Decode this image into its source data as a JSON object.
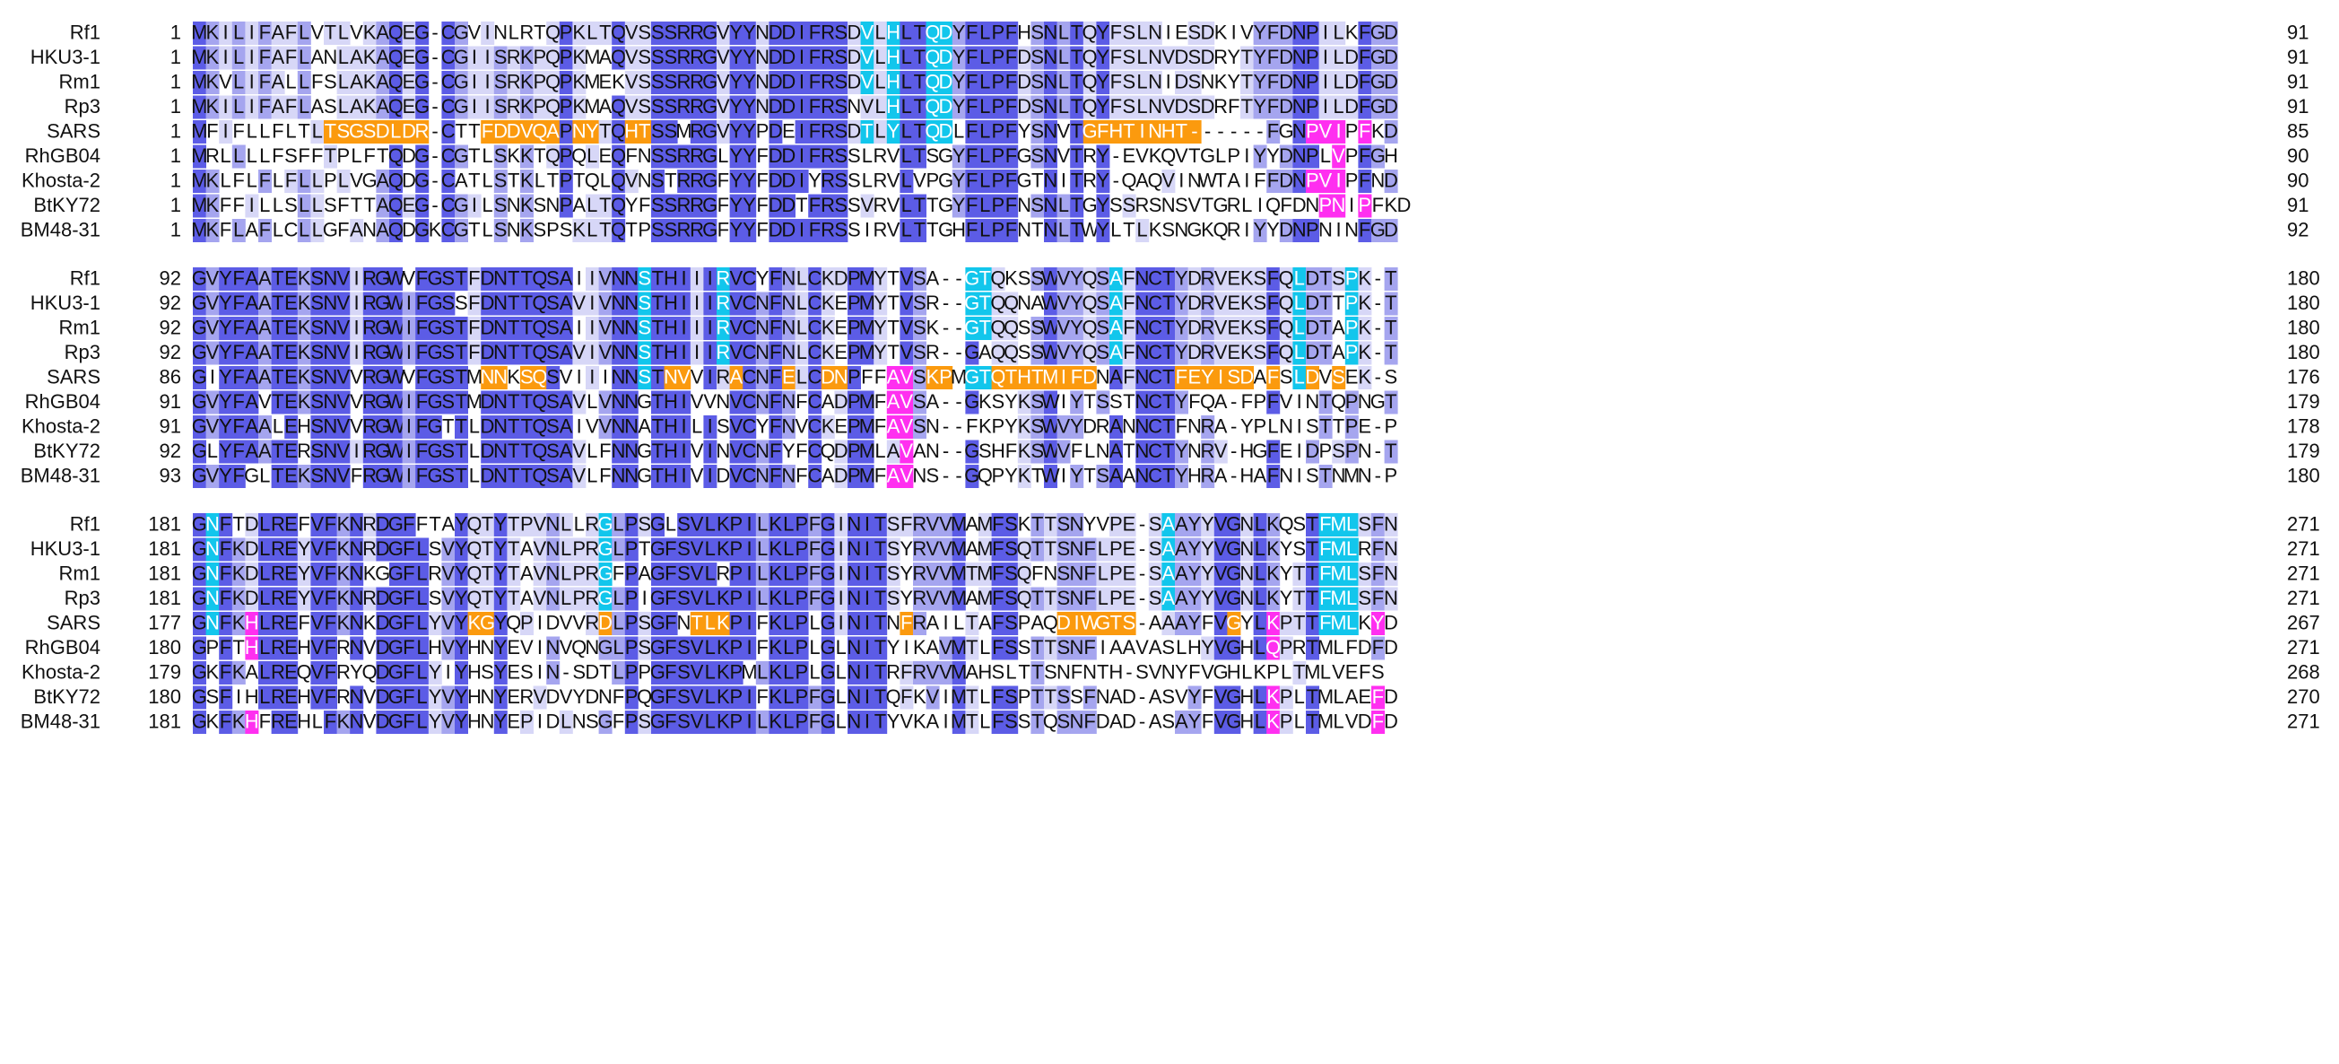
{
  "colors": {
    "conservation": [
      "#ffffff",
      "#d7d7f7",
      "#a5a5ef",
      "#5c5ce6"
    ],
    "cyan": "#12c6ec",
    "orange": "#fb9a0e",
    "magenta": "#ff2ff0",
    "text_dark": "#111111",
    "text_light": "#ffffff"
  },
  "blocks": [
    {
      "rows": [
        {
          "name": "Rf1",
          "start": "1",
          "seq": "MKILIFAFLVTLVKAQEG-CGVINLRTQPKLTQVSSSRRGVYYNDDIFRSDVLHLTQDYFLPFHSNLTQYFSLNIESDKIVYFDNPILKFGD",
          "end": "91"
        },
        {
          "name": "HKU3-1",
          "start": "1",
          "seq": "MKILIFAFLANLAKAQEG-CGIISRKPQPKMAQVSSSRRGVYYNDDIFRSDVLHLTQDYFLPFDSNLTQYFSLNVDSDRYTYFDNPILDFGD",
          "end": "91"
        },
        {
          "name": "Rm1",
          "start": "1",
          "seq": "MKVLIFALLFSLAKAQEG-CGIISRKPQPKMEKVSSSRRGVYYNDDIFRSDVLHLTQDYFLPFDSNLTQYFSLNIDSNKYTYFDNPILDFGD",
          "end": "91"
        },
        {
          "name": "Rp3",
          "start": "1",
          "seq": "MKILIFAFLASLAKAQEG-CGIISRKPQPKMAQVSSSRRGVYYNDDIFRSNVLHLTQDYFLPFDSNLTQYFSLNVDSDRFTYFDNPILDFGD",
          "end": "91"
        },
        {
          "name": "SARS",
          "start": "1",
          "seq": "MFIFLLFLTLTSGSDLDR-CTTFDDVQAPNYTQHTSSMRGVYYPDEIFRSDTLYLTQDLFLPFYSNVTGFHTINHT------FGNPVIPFKD",
          "end": "85"
        },
        {
          "name": "RhGB04",
          "start": "1",
          "seq": "MRLLLLFSFFTPLFTQDG-CGTLSKKTQPQLEQFNSSRRGLYYFDDIFRSSLRVLTSGYFLPFGSNVTRY-EVKQVTGLPIYYDNPLVPFGH",
          "end": "90"
        },
        {
          "name": "Khosta-2",
          "start": "1",
          "seq": "MKLFLFLFLLPLVGAQDG-CATLSTKLTPTQLQVNSTRRGFYYFDDIYRSSLRVLVPGYFLPFGTNITRY-QAQVINWTAIFFDNPVIPFND",
          "end": "90"
        },
        {
          "name": "BtKY72",
          "start": "1",
          "seq": "MKFFILLSLLSFTTAQEG-CGILSNKSNPALTQYFSSRRGFYYFDDTFRSSVRVLTTGYFLPFNSNLTGYSSRSNSVTGRLIQFDNPNIPFKD",
          "end": "91"
        },
        {
          "name": "BM48-31",
          "start": "1",
          "seq": "MKFLAFLCLLGFANAQDGKCGTLSNKSPSKLTQTPSSRRGFYYFDDIFRSSIRVLTTGHFLPFNTNLTWYLTLKSNGKQRIYYDNPNINFGD",
          "end": "92"
        }
      ]
    },
    {
      "rows": [
        {
          "name": "Rf1",
          "start": "92",
          "seq": "GVYFAATEKSNVIRGWVFGSTFDNTTQSAIIVNNSTHIIIRVCYFNLCKDPMYTVSA--GTQKSSWVYQSAFNCTYDRVEKSFQLDTSPK-T",
          "end": "180"
        },
        {
          "name": "HKU3-1",
          "start": "92",
          "seq": "GVYFAATEKSNVIRGWIFGSSFDNTTQSAVIVNNSTHIIIRVCNFNLCKEPMYTVSR--GTQQNAWVYQSAFNCTYDRVEKSFQLDTTPK-T",
          "end": "180"
        },
        {
          "name": "Rm1",
          "start": "92",
          "seq": "GVYFAATEKSNVIRGWIFGSTFDNTTQSAIIVNNSTHIIIRVCNFNLCKEPMYTVSK--GTQQSSWVYQSAFNCTYDRVEKSFQLDTAPK-T",
          "end": "180"
        },
        {
          "name": "Rp3",
          "start": "92",
          "seq": "GVYFAATEKSNVIRGWIFGSTFDNTTQSAVIVNNSTHIIIRVCNFNLCKEPMYTVSR--GAQQSSWVYQSAFNCTYDRVEKSFQLDTAPK-T",
          "end": "180"
        },
        {
          "name": "SARS",
          "start": "86",
          "seq": "GIYFAATEKSNVVRGWVFGSTMNNKSQSVIIINNSTNVVIRACNFELCDNPFFAVSKPMGTQTHTMIFDNAFNCTFEYISDAFSLDVSEK-S",
          "end": "176"
        },
        {
          "name": "RhGB04",
          "start": "91",
          "seq": "GVYFAVTEKSNVVRGWIFGSTMDNTTQSAVLVNNGTHIVVNVCNFNFCADPMFAVSA--GKSYKSWIYTSSTNCTYFQA-FPFVINTQPNGT",
          "end": "179"
        },
        {
          "name": "Khosta-2",
          "start": "91",
          "seq": "GVYFAALEHSNVVRGWIFGTTLDNTTQSAIVVNNATHILISVCYFNVCKEPMFAVSN--FKPYKSWVYDRANNCTFNRA-YPLNISTTPE-P",
          "end": "178"
        },
        {
          "name": "BtKY72",
          "start": "92",
          "seq": "GLYFAATERSNVIRGWIFGSTLDNTTQSAVLFNNGTHIVINVCNFYFCQDPMLAVAN--GSHFKSWVFLNATNCTYNRV-HGFEIDPSPN-T",
          "end": "179"
        },
        {
          "name": "BM48-31",
          "start": "93",
          "seq": "GVYFGLTEKSNVFRGWIFGSTLDNTTQSAVLFNNGTHIVIDVCNFNFCADPMFAVNS--GQPYKTWIYTSAANCTYHRA-HAFNISTNMN-P",
          "end": "180"
        }
      ]
    },
    {
      "rows": [
        {
          "name": "Rf1",
          "start": "181",
          "seq": "GNFTDLREFVFKNRDGFFTAYQTYTPVNLLRGLPSGLSVLKPILKLPFGINITSFRVVMAMFSKTTSNYVPE-SAAYYVGNLKQSTFMLSFN",
          "end": "271"
        },
        {
          "name": "HKU3-1",
          "start": "181",
          "seq": "GNFKDLREYVFKNRDGFLSVYQTYTAVNLPRGLPTGFSVLKPILKLPFGINITSYRVVMAMFSQTTSNFLPE-SAAYYVGNLKYSTFMLRFN",
          "end": "271"
        },
        {
          "name": "Rm1",
          "start": "181",
          "seq": "GNFKDLREYVFKNKGGFLRVYQTYTAVNLPRGFPAGFSVLRPILKLPFGINITSYRVVMTMFSQFNSNFLPE-SAAYYVGNLKYTTFMLSFN",
          "end": "271"
        },
        {
          "name": "Rp3",
          "start": "181",
          "seq": "GNFKDLREYVFKNRDGFLSVYQTYTAVNLPRGLPIGFSVLKPILKLPFGINITSYRVVMAMFSQTTSNFLPE-SAAYYVGNLKYTTFMLSFN",
          "end": "271"
        },
        {
          "name": "SARS",
          "start": "177",
          "seq": "GNFKHLREFVFKNKDGFLYVYKGYQPIDVVRDLPSGFNTLKPIFKLPLGINITNFRAILTAFSPAQDIWGTS-AAAYFVGYLKPTTFMLKYD",
          "end": "267"
        },
        {
          "name": "RhGB04",
          "start": "180",
          "seq": "GPFTHLREHVFRNVDGFLHVYHNYEVINVQNGLPSGFSVLKPIFKLPLGLNITYIKAVMTLFSSTTSNFIAAVASLHYVGHLQPRTMLFDFD",
          "end": "271"
        },
        {
          "name": "Khosta-2",
          "start": "179",
          "seq": "GKFKALREQVFRYQDGFLYIYHSYESIN-SDTLPPGFSVLKPMLKLPLGLNITRFRVVMAHSLTTSNFNTH-SVNYFVGHLKPLTMLVEFS",
          "end": "268"
        },
        {
          "name": "BtKY72",
          "start": "180",
          "seq": "GSFIHLREHVFRNVDGFLYVYHNYERVDVYDNFPQGFSVLKPIFKLPFGLNITQFKVIMTLFSPTTSSFNAD-ASVYFVGHLKPLTMLAEFD",
          "end": "270"
        },
        {
          "name": "BM48-31",
          "start": "181",
          "seq": "GKFKHFREHLFKNVDGFLYVYHNYEPIDLNSGFPSGFSVLKPILKLPFGLNITYVKAIMTLFSSTQSNFDAD-ASAYFVGHLKPLTMLVDFD",
          "end": "271"
        }
      ]
    }
  ]
}
